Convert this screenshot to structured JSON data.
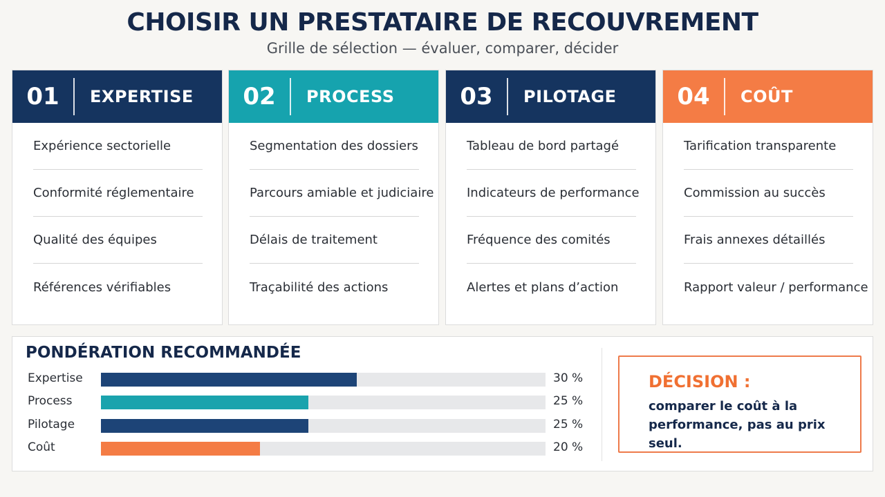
{
  "header": {
    "title": "CHOISIR UN PRESTATAIRE DE RECOUVREMENT",
    "subtitle": "Grille de sélection — évaluer, comparer, décider"
  },
  "cards": [
    {
      "number": "01",
      "label": "EXPERTISE",
      "color": "#15345f",
      "items": [
        "Expérience sectorielle",
        "Conformité réglementaire",
        "Qualité des équipes",
        "Références vérifiables"
      ]
    },
    {
      "number": "02",
      "label": "PROCESS",
      "color": "#16a3ae",
      "items": [
        "Segmentation des dossiers",
        "Parcours amiable et judiciaire",
        "Délais de traitement",
        "Traçabilité des actions"
      ]
    },
    {
      "number": "03",
      "label": "PILOTAGE",
      "color": "#15345f",
      "items": [
        "Tableau de bord partagé",
        "Indicateurs de performance",
        "Fréquence des comités",
        "Alertes et plans d’action"
      ]
    },
    {
      "number": "04",
      "label": "COÛT",
      "color": "#f47c45",
      "items": [
        "Tarification transparente",
        "Commission au succès",
        "Frais annexes détaillés",
        "Rapport valeur / performance"
      ]
    }
  ],
  "weighting": {
    "title": "PONDÉRATION RECOMMANDÉE",
    "rows": [
      {
        "label": "Expertise",
        "percent_label": "30 %",
        "fill_fraction": 0.575,
        "color": "#1d4477"
      },
      {
        "label": "Process",
        "percent_label": "25 %",
        "fill_fraction": 0.467,
        "color": "#1aa3ad"
      },
      {
        "label": "Pilotage",
        "percent_label": "25 %",
        "fill_fraction": 0.467,
        "color": "#1d4477"
      },
      {
        "label": "Coût",
        "percent_label": "20 %",
        "fill_fraction": 0.358,
        "color": "#f47c45"
      }
    ]
  },
  "decision": {
    "title": "DÉCISION :",
    "text": "comparer le coût à la performance, pas au prix seul."
  }
}
